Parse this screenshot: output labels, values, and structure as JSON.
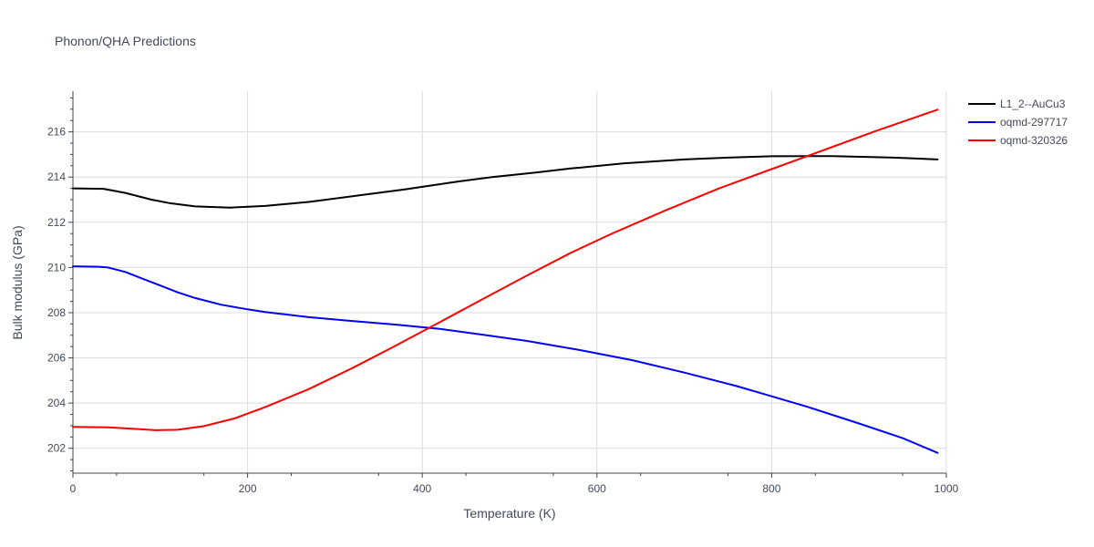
{
  "chart_data": {
    "type": "line",
    "title": "Phonon/QHA Predictions",
    "xlabel": "Temperature (K)",
    "ylabel": "Bulk modulus (GPa)",
    "xlim": [
      0,
      1000
    ],
    "ylim": [
      200.9,
      217.8
    ],
    "x_ticks": [
      0,
      200,
      400,
      600,
      800,
      1000
    ],
    "y_ticks": [
      202,
      204,
      206,
      208,
      210,
      212,
      214,
      216
    ],
    "grid": true,
    "legend_position": "top-right",
    "series": [
      {
        "name": "L1_2--AuCu3",
        "color": "#000000",
        "x": [
          0,
          35,
          60,
          90,
          110,
          140,
          180,
          220,
          270,
          320,
          380,
          440,
          480,
          530,
          570,
          630,
          700,
          750,
          800,
          870,
          940,
          990
        ],
        "y": [
          213.5,
          213.48,
          213.3,
          213.0,
          212.85,
          212.7,
          212.65,
          212.72,
          212.9,
          213.15,
          213.45,
          213.8,
          214.0,
          214.2,
          214.38,
          214.6,
          214.78,
          214.86,
          214.92,
          214.93,
          214.86,
          214.78
        ]
      },
      {
        "name": "oqmd-297717",
        "color": "#0000ff",
        "x": [
          0,
          30,
          40,
          60,
          80,
          100,
          120,
          140,
          170,
          200,
          220,
          270,
          320,
          370,
          420,
          470,
          520,
          580,
          640,
          700,
          760,
          800,
          840,
          900,
          950,
          990
        ],
        "y": [
          210.05,
          210.03,
          210.0,
          209.8,
          209.5,
          209.2,
          208.9,
          208.65,
          208.35,
          208.15,
          208.03,
          207.8,
          207.63,
          207.47,
          207.28,
          207.02,
          206.75,
          206.35,
          205.9,
          205.35,
          204.75,
          204.3,
          203.85,
          203.1,
          202.45,
          201.8
        ]
      },
      {
        "name": "oqmd-320326",
        "color": "#ff0000",
        "x": [
          0,
          40,
          70,
          95,
          120,
          150,
          185,
          220,
          270,
          320,
          370,
          420,
          470,
          520,
          570,
          620,
          680,
          740,
          800,
          860,
          920,
          990
        ],
        "y": [
          202.95,
          202.93,
          202.86,
          202.8,
          202.82,
          202.98,
          203.32,
          203.82,
          204.62,
          205.55,
          206.55,
          207.58,
          208.62,
          209.65,
          210.65,
          211.55,
          212.55,
          213.5,
          214.35,
          215.2,
          216.05,
          216.98
        ]
      }
    ]
  }
}
